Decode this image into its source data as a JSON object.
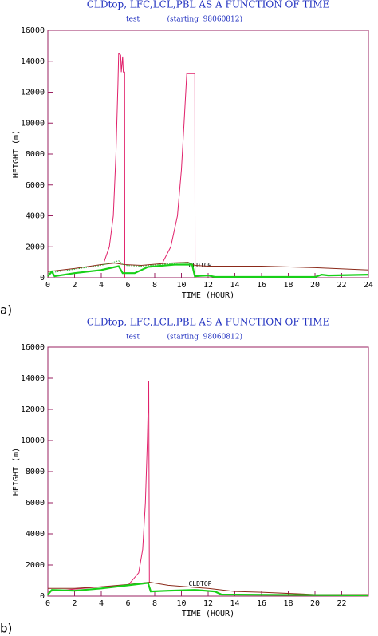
{
  "chart_data": [
    {
      "type": "line",
      "title": "CLDtop, LFC,LCL,PBL AS A FUNCTION OF TIME",
      "subtitle": "test            (starting  98060812)",
      "xlabel": "TIME (HOUR)",
      "ylabel": "HEIGHT (m)",
      "annotation": "CLDTOP",
      "panel": "a)",
      "xlim": [
        0,
        24
      ],
      "ylim": [
        0,
        16000
      ],
      "xticks": [
        0,
        2,
        4,
        6,
        8,
        10,
        12,
        14,
        16,
        18,
        20,
        22,
        24
      ],
      "yticks": [
        0,
        2000,
        4000,
        6000,
        8000,
        10000,
        12000,
        14000,
        16000
      ],
      "series": [
        {
          "color": "#e0206a",
          "style": "solid",
          "x": [
            4.2,
            4.6,
            4.9,
            5.1,
            5.25,
            5.3,
            5.45,
            5.5,
            5.6,
            5.65,
            5.75,
            5.76,
            8,
            8.6,
            9.2,
            9.7,
            10.0,
            10.2,
            10.4,
            11.0,
            11.02
          ],
          "values": [
            1000,
            2000,
            4000,
            8000,
            12500,
            14500,
            14400,
            13300,
            14300,
            13300,
            13300,
            0,
            null,
            1000,
            2000,
            4000,
            7000,
            10000,
            13200,
            13200,
            100
          ]
        },
        {
          "color": "#8b2a1a",
          "style": "solid",
          "x": [
            0,
            2,
            4,
            5,
            5.7,
            7,
            9,
            10.5,
            11,
            12,
            16,
            20,
            24
          ],
          "values": [
            400,
            600,
            850,
            950,
            850,
            800,
            950,
            1000,
            800,
            750,
            750,
            650,
            500
          ]
        },
        {
          "color": "#30b030",
          "style": "dotted",
          "x": [
            0,
            2,
            4,
            5.3,
            5.7,
            7,
            9,
            10.5,
            11
          ],
          "values": [
            300,
            550,
            800,
            1100,
            800,
            750,
            900,
            1000,
            700
          ]
        },
        {
          "color": "#18d018",
          "style": "thick",
          "x": [
            0,
            0.3,
            0.5,
            2,
            4,
            5.3,
            5.6,
            6.5,
            7.5,
            9.5,
            10.8,
            11,
            12,
            12.5,
            20,
            20.5,
            21,
            24
          ],
          "values": [
            100,
            400,
            100,
            300,
            500,
            750,
            300,
            300,
            700,
            850,
            850,
            100,
            150,
            50,
            50,
            200,
            150,
            200
          ]
        }
      ]
    },
    {
      "type": "line",
      "title": "CLDtop, LFC,LCL,PBL AS A FUNCTION OF TIME",
      "subtitle": "test            (starting  98060812)",
      "xlabel": "TIME (HOUR)",
      "ylabel": "HEIGHT (m)",
      "annotation": "CLDTOP",
      "panel": "b)",
      "xlim": [
        0,
        24
      ],
      "ylim": [
        0,
        16000
      ],
      "xticks": [
        0,
        2,
        4,
        6,
        8,
        10,
        12,
        14,
        16,
        18,
        20,
        22
      ],
      "yticks": [
        0,
        2000,
        4000,
        6000,
        8000,
        10000,
        12000,
        14000,
        16000
      ],
      "series": [
        {
          "color": "#e0206a",
          "style": "solid",
          "x": [
            0,
            4,
            6,
            6.8,
            7.1,
            7.3,
            7.45,
            7.55,
            7.6
          ],
          "values": [
            300,
            600,
            700,
            1500,
            3000,
            6000,
            10000,
            13800,
            900
          ]
        },
        {
          "color": "#8b2a1a",
          "style": "solid",
          "x": [
            0,
            2,
            4,
            6,
            7.6,
            9,
            12,
            14,
            16,
            20,
            24
          ],
          "values": [
            500,
            500,
            600,
            750,
            900,
            700,
            500,
            300,
            250,
            100,
            100
          ]
        },
        {
          "color": "#18d018",
          "style": "thick",
          "x": [
            0,
            0.3,
            2,
            4,
            6,
            7.5,
            7.7,
            9,
            11,
            12.5,
            13,
            24
          ],
          "values": [
            100,
            400,
            350,
            500,
            700,
            850,
            300,
            350,
            400,
            300,
            100,
            50
          ]
        }
      ]
    }
  ]
}
